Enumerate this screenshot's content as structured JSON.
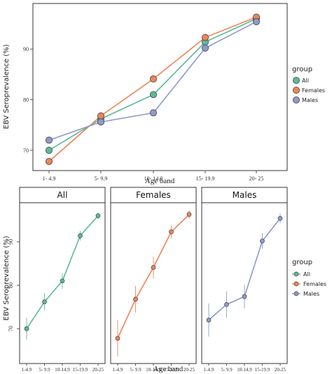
{
  "colors": {
    "All": "#5bb99a",
    "Females": "#ee8458",
    "Males": "#8e9ac9",
    "frame": "#333333",
    "gridtick": "#555555"
  },
  "chart_data": [
    {
      "type": "line",
      "xlabel": "Age band",
      "ylabel": "EBV Seroprevalence (%)",
      "categories": [
        "1- 4.9",
        "5- 9.9",
        "10- 14.9",
        "15- 19.9",
        "20- 25"
      ],
      "yticks": [
        70,
        80,
        90
      ],
      "ylim": [
        66,
        99
      ],
      "legend": {
        "title": "group",
        "position": "right"
      },
      "series": [
        {
          "name": "All",
          "values": [
            70.0,
            76.2,
            81.0,
            91.4,
            96.0
          ]
        },
        {
          "name": "Females",
          "values": [
            67.8,
            76.8,
            84.1,
            92.3,
            96.3
          ]
        },
        {
          "name": "Males",
          "values": [
            72.0,
            75.6,
            77.4,
            90.2,
            95.4
          ]
        }
      ]
    },
    {
      "type": "line",
      "facets": [
        "All",
        "Females",
        "Males"
      ],
      "xlabel": "Age band",
      "ylabel": "EBV Seroprevalence (%)",
      "categories": [
        "1-4.9",
        "5- 9.9",
        "10-14.9",
        "15-19.9",
        "20-25"
      ],
      "yticks": [
        70,
        80,
        90
      ],
      "ylim": [
        62,
        99
      ],
      "legend": {
        "title": "group",
        "position": "right"
      },
      "series": [
        {
          "name": "All",
          "values": [
            70.0,
            76.2,
            81.0,
            91.4,
            96.0
          ],
          "lower": [
            67.5,
            74.2,
            79.2,
            90.3,
            95.3
          ],
          "upper": [
            72.5,
            78.2,
            82.8,
            92.5,
            96.7
          ]
        },
        {
          "name": "Females",
          "values": [
            67.8,
            76.8,
            84.1,
            92.3,
            96.3
          ],
          "lower": [
            63.6,
            73.7,
            81.6,
            90.8,
            95.3
          ],
          "upper": [
            72.0,
            79.9,
            86.6,
            93.8,
            97.3
          ]
        },
        {
          "name": "Males",
          "values": [
            72.0,
            75.6,
            77.4,
            90.2,
            95.4
          ],
          "lower": [
            68.2,
            72.6,
            74.7,
            88.4,
            94.3
          ],
          "upper": [
            75.8,
            78.6,
            80.1,
            92.0,
            96.5
          ]
        }
      ]
    }
  ]
}
